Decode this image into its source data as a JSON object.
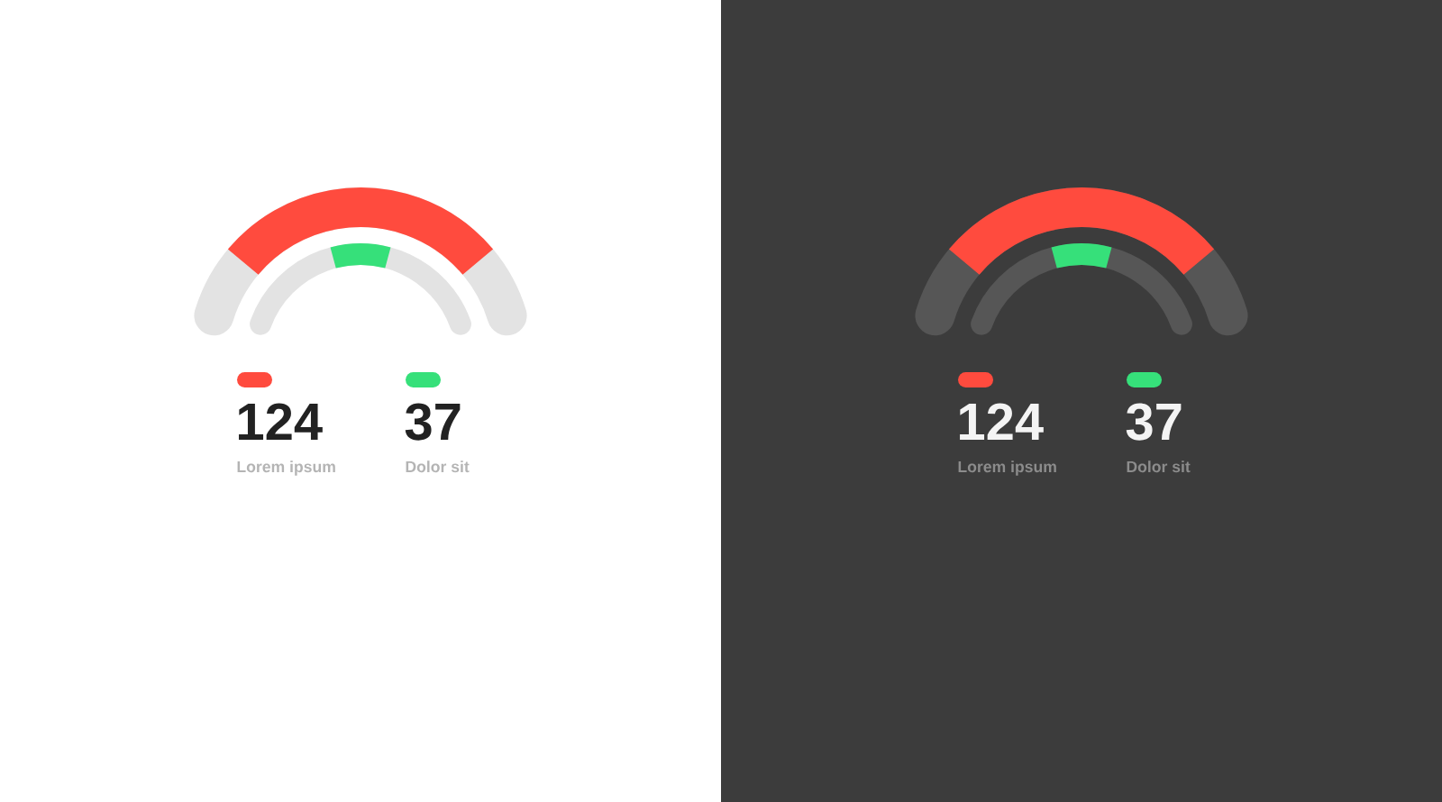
{
  "chart_data": [
    {
      "type": "other",
      "categories": [
        "Lorem ipsum",
        "Dolor sit"
      ],
      "values": [
        124,
        37
      ],
      "colors": [
        "#ff4b3e",
        "#36e07a"
      ],
      "data_labels": true
    },
    {
      "type": "other",
      "categories": [
        "Lorem ipsum",
        "Dolor sit"
      ],
      "values": [
        124,
        37
      ],
      "colors": [
        "#ff4b3e",
        "#36e07a"
      ],
      "data_labels": true
    }
  ]
}
